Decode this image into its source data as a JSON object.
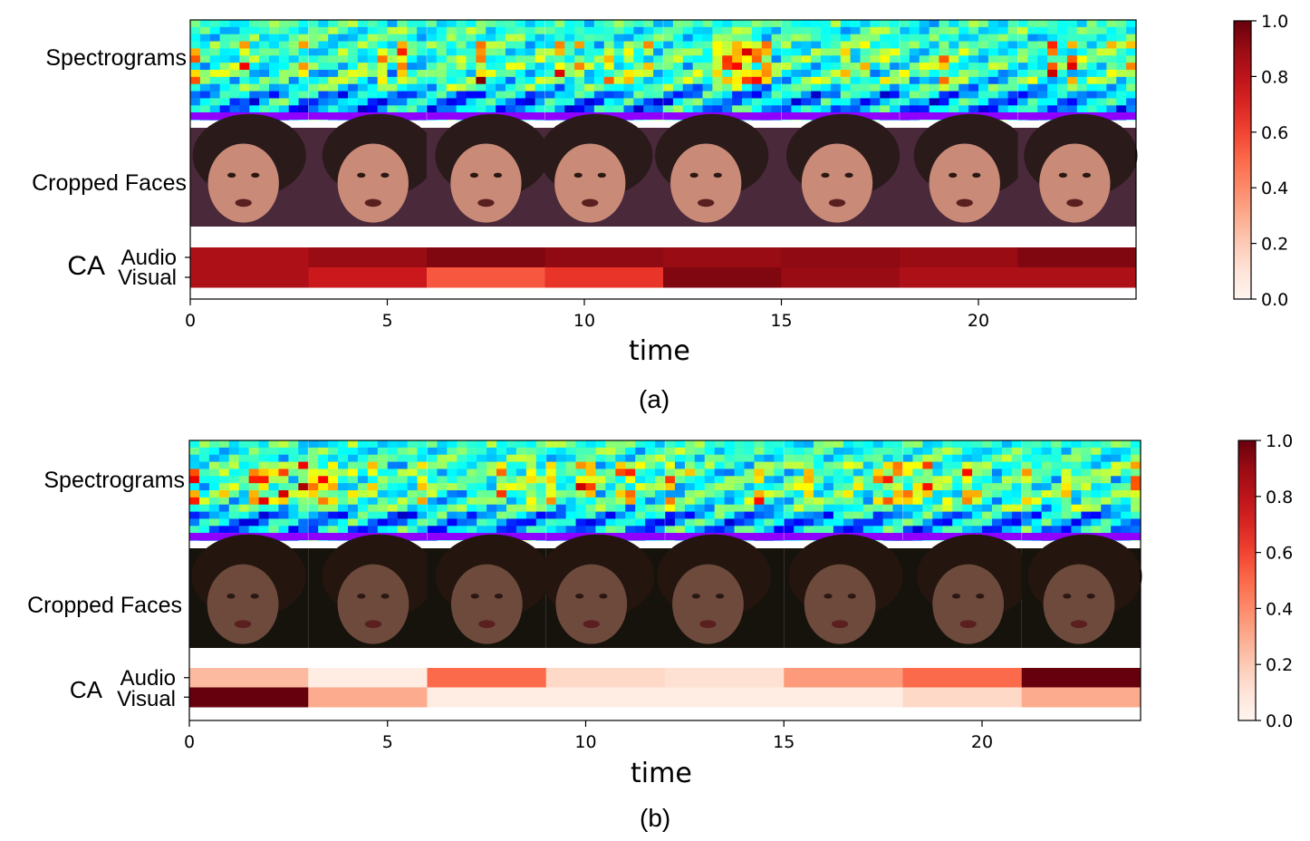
{
  "chart_data": [
    {
      "type": "heatmap",
      "caption": "(a)",
      "row_labels": {
        "spectrogram": "Spectrograms",
        "faces": "Cropped Faces",
        "ca": "CA",
        "audio": "Audio",
        "visual": "Visual"
      },
      "xlabel": "time",
      "xlim": [
        0,
        24
      ],
      "xticks": [
        0,
        5,
        10,
        15,
        20
      ],
      "segment_starts": [
        0,
        3,
        6,
        9,
        12,
        15,
        18,
        21
      ],
      "segment_length": 3,
      "series": [
        {
          "name": "Audio",
          "values": [
            0.85,
            0.9,
            0.95,
            0.92,
            0.9,
            0.92,
            0.9,
            0.95
          ]
        },
        {
          "name": "Visual",
          "values": [
            0.85,
            0.75,
            0.55,
            0.65,
            0.95,
            0.9,
            0.85,
            0.85
          ]
        }
      ],
      "colorbar": {
        "colormap": "Reds",
        "range": [
          0.0,
          1.0
        ],
        "ticks": [
          "0.0",
          "0.2",
          "0.4",
          "0.6",
          "0.8",
          "1.0"
        ]
      },
      "face_palette": {
        "background": "#4a2a3a",
        "skin": "#c98a78",
        "hair": "#2a1a1a"
      }
    },
    {
      "type": "heatmap",
      "caption": "(b)",
      "row_labels": {
        "spectrogram": "Spectrograms",
        "faces": "Cropped Faces",
        "ca": "CA",
        "audio": "Audio",
        "visual": "Visual"
      },
      "xlabel": "time",
      "xlim": [
        0,
        24
      ],
      "xticks": [
        0,
        5,
        10,
        15,
        20
      ],
      "segment_starts": [
        0,
        3,
        6,
        9,
        12,
        15,
        18,
        21
      ],
      "segment_length": 3,
      "series": [
        {
          "name": "Audio",
          "values": [
            0.25,
            0.05,
            0.5,
            0.15,
            0.12,
            0.35,
            0.5,
            1.0
          ]
        },
        {
          "name": "Visual",
          "values": [
            1.0,
            0.3,
            0.05,
            0.05,
            0.05,
            0.05,
            0.15,
            0.3
          ]
        }
      ],
      "colorbar": {
        "colormap": "Reds",
        "range": [
          0.0,
          1.0
        ],
        "ticks": [
          "0.0",
          "0.2",
          "0.4",
          "0.6",
          "0.8",
          "1.0"
        ]
      },
      "face_palette": {
        "background": "#16120c",
        "skin": "#6e4a3c",
        "hair": "#24160f"
      }
    }
  ]
}
